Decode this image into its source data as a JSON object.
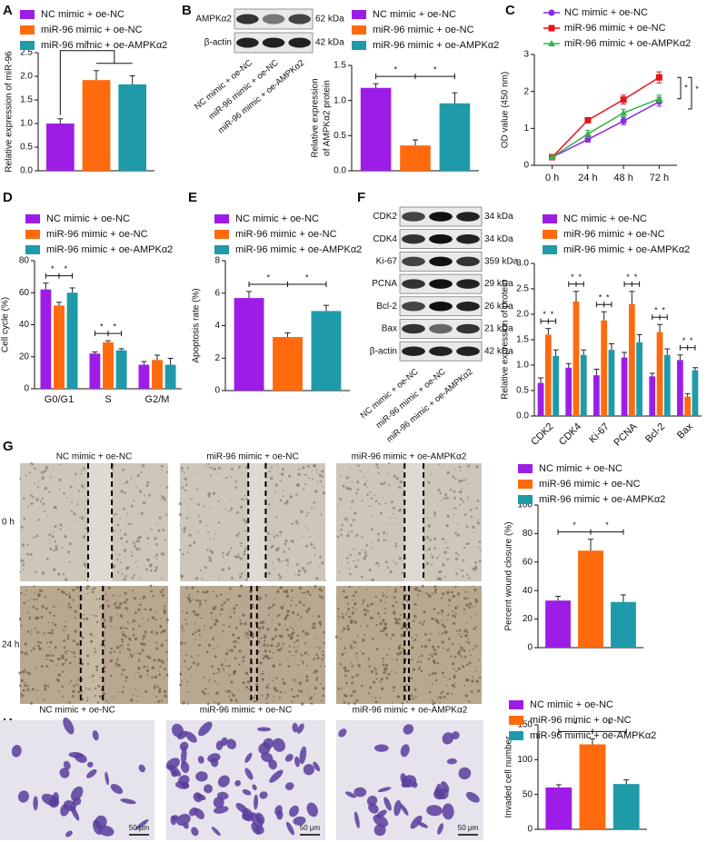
{
  "chart_data": [
    {
      "type": "bar",
      "panel": "A",
      "ylabel": "Relative expression of miR-96",
      "categories": [
        null
      ],
      "series": [
        {
          "name": "NC mimic + oe-NC",
          "color": "#9d1de6",
          "values": [
            1.0
          ],
          "errors": [
            0.1
          ]
        },
        {
          "name": "miR-96 mimic + oe-NC",
          "color": "#ff6a0d",
          "values": [
            1.92
          ],
          "errors": [
            0.2
          ]
        },
        {
          "name": "miR-96 mimic + oe-AMPKα2",
          "color": "#1f9aa9",
          "values": [
            1.83
          ],
          "errors": [
            0.18
          ]
        }
      ],
      "ylim": [
        0,
        2.5
      ],
      "yticks": [
        {
          "value": 0,
          "label": "0.0"
        },
        {
          "value": 0.5,
          "label": "0.5"
        },
        {
          "value": 1,
          "label": "1.0"
        },
        {
          "value": 1.5,
          "label": "1.5"
        },
        {
          "value": 2,
          "label": "2.0"
        },
        {
          "value": 2.5,
          "label": "2.5"
        }
      ],
      "annotations": [
        "*"
      ]
    },
    {
      "type": "bar",
      "panel": "B",
      "ylabel": [
        "Relative expression",
        "of AMPKα2 protein"
      ],
      "categories": [
        null
      ],
      "series": [
        {
          "name": "NC mimic + oe-NC",
          "color": "#9d1de6",
          "values": [
            1.18
          ],
          "errors": [
            0.06
          ]
        },
        {
          "name": "miR-96 mimic + oe-NC",
          "color": "#ff6a0d",
          "values": [
            0.36
          ],
          "errors": [
            0.08
          ]
        },
        {
          "name": "miR-96 mimic + oe-AMPKα2",
          "color": "#1f9aa9",
          "values": [
            0.96
          ],
          "errors": [
            0.15
          ]
        }
      ],
      "ylim": [
        0,
        1.5
      ],
      "yticks": [
        {
          "value": 0,
          "label": "0.0"
        },
        {
          "value": 0.5,
          "label": "0.5"
        },
        {
          "value": 1,
          "label": "1.0"
        },
        {
          "value": 1.5,
          "label": "1.5"
        }
      ],
      "annotations": [
        "*",
        "*"
      ]
    },
    {
      "type": "line",
      "panel": "C",
      "ylabel": "OD value (450 nm)",
      "categories": [
        "0 h",
        "24 h",
        "48 h",
        "72 h"
      ],
      "series": [
        {
          "name": "NC mimic + oe-NC",
          "color": "#8a2be2",
          "marker": "circle",
          "values": [
            0.22,
            0.7,
            1.2,
            1.72
          ],
          "errors": [
            0.03,
            0.07,
            0.1,
            0.12
          ]
        },
        {
          "name": "miR-96 mimic + oe-NC",
          "color": "#e8141b",
          "marker": "square",
          "values": [
            0.22,
            1.22,
            1.78,
            2.38
          ],
          "errors": [
            0.03,
            0.07,
            0.12,
            0.15
          ]
        },
        {
          "name": "miR-96 mimic + oe-AMPKα2",
          "color": "#32b34a",
          "marker": "triangle",
          "values": [
            0.22,
            0.85,
            1.42,
            1.8
          ],
          "errors": [
            0.03,
            0.1,
            0.1,
            0.1
          ]
        }
      ],
      "ylim": [
        0,
        3
      ],
      "yticks": [
        0,
        1,
        2,
        3
      ],
      "annotations": [
        "*",
        "*"
      ]
    },
    {
      "type": "bar",
      "panel": "D",
      "ylabel": "Cell cycle (%)",
      "categories": [
        "G0/G1",
        "S",
        "G2/M"
      ],
      "series": [
        {
          "name": "NC mimic + oe-NC",
          "color": "#9d1de6",
          "values": [
            62,
            22,
            15
          ],
          "errors": [
            4,
            1,
            2
          ]
        },
        {
          "name": "miR-96 mimic + oe-NC",
          "color": "#ff6a0d",
          "values": [
            52,
            29,
            18
          ],
          "errors": [
            2,
            1,
            3
          ]
        },
        {
          "name": "miR-96 mimic + oe-AMPKα2",
          "color": "#1f9aa9",
          "values": [
            60,
            24,
            15
          ],
          "errors": [
            3,
            1,
            4
          ]
        }
      ],
      "ylim": [
        0,
        80
      ],
      "yticks": [
        0,
        20,
        40,
        60,
        80
      ],
      "annotations": [
        "*",
        "*",
        "*",
        "*"
      ]
    },
    {
      "type": "bar",
      "panel": "E",
      "ylabel": "Apoptosis rate (%)",
      "categories": [
        null
      ],
      "series": [
        {
          "name": "NC mimic + oe-NC",
          "color": "#9d1de6",
          "values": [
            5.7
          ],
          "errors": [
            0.4
          ]
        },
        {
          "name": "miR-96 mimic + oe-NC",
          "color": "#ff6a0d",
          "values": [
            3.3
          ],
          "errors": [
            0.25
          ]
        },
        {
          "name": "miR-96 mimic + oe-AMPKα2",
          "color": "#1f9aa9",
          "values": [
            4.9
          ],
          "errors": [
            0.35
          ]
        }
      ],
      "ylim": [
        0,
        8
      ],
      "yticks": [
        0,
        2,
        4,
        6,
        8
      ],
      "annotations": [
        "*",
        "*"
      ]
    },
    {
      "type": "bar",
      "panel": "F",
      "ylabel": "Relative expression of protein",
      "categories": [
        "CDK2",
        "CDK4",
        "Ki-67",
        "PCNA",
        "Bcl-2",
        "Bax"
      ],
      "series": [
        {
          "name": "NC mimic + oe-NC",
          "color": "#9d1de6",
          "values": [
            0.65,
            0.95,
            0.8,
            1.15,
            0.78,
            1.1
          ],
          "errors": [
            0.1,
            0.08,
            0.12,
            0.1,
            0.06,
            0.1
          ]
        },
        {
          "name": "miR-96 mimic + oe-NC",
          "color": "#ff6a0d",
          "values": [
            1.6,
            2.25,
            1.88,
            2.2,
            1.65,
            0.38
          ],
          "errors": [
            0.12,
            0.2,
            0.17,
            0.25,
            0.15,
            0.06
          ]
        },
        {
          "name": "miR-96 mimic + oe-AMPKα2",
          "color": "#1f9aa9",
          "values": [
            1.18,
            1.2,
            1.3,
            1.45,
            1.2,
            0.9
          ],
          "errors": [
            0.12,
            0.1,
            0.12,
            0.15,
            0.12,
            0.05
          ]
        }
      ],
      "ylim": [
        0,
        3
      ],
      "yticks": [
        {
          "value": 0,
          "label": "0.0"
        },
        {
          "value": 0.5,
          "label": "0.5"
        },
        {
          "value": 1,
          "label": "1.0"
        },
        {
          "value": 1.5,
          "label": "1.5"
        },
        {
          "value": 2,
          "label": "2.0"
        },
        {
          "value": 2.5,
          "label": "2.5"
        },
        {
          "value": 3,
          "label": "3.0"
        }
      ],
      "annotations": [
        "*",
        "*",
        "*",
        "*",
        "*",
        "*",
        "*",
        "*",
        "*",
        "*",
        "*",
        "*"
      ]
    },
    {
      "type": "bar",
      "panel": "G",
      "ylabel": "Percent wound closure (%)",
      "categories": [
        null
      ],
      "series": [
        {
          "name": "NC mimic + oe-NC",
          "color": "#9d1de6",
          "values": [
            33
          ],
          "errors": [
            3
          ]
        },
        {
          "name": "miR-96 mimic + oe-NC",
          "color": "#ff6a0d",
          "values": [
            68
          ],
          "errors": [
            8
          ]
        },
        {
          "name": "miR-96 mimic + oe-AMPKα2",
          "color": "#1f9aa9",
          "values": [
            32
          ],
          "errors": [
            5
          ]
        }
      ],
      "ylim": [
        0,
        100
      ],
      "yticks": [
        0,
        20,
        40,
        60,
        80,
        100
      ],
      "annotations": [
        "*",
        "*"
      ]
    },
    {
      "type": "bar",
      "panel": "H",
      "ylabel": "Invaded cell number",
      "categories": [
        null
      ],
      "series": [
        {
          "name": "NC mimic + oe-NC",
          "color": "#9d1de6",
          "values": [
            60
          ],
          "errors": [
            4
          ]
        },
        {
          "name": "miR-96 mimic + oe-NC",
          "color": "#ff6a0d",
          "values": [
            122
          ],
          "errors": [
            8
          ]
        },
        {
          "name": "miR-96 mimic + oe-AMPKα2",
          "color": "#1f9aa9",
          "values": [
            65
          ],
          "errors": [
            6
          ]
        }
      ],
      "ylim": [
        0,
        150
      ],
      "yticks": [
        0,
        50,
        100,
        150
      ],
      "annotations": [
        "*",
        "*"
      ]
    }
  ],
  "blot_B": {
    "rows": [
      {
        "label": "AMPKα2",
        "size": "62 kDa"
      },
      {
        "label": "β-actin",
        "size": "42 kDa"
      }
    ],
    "lanes": [
      "NC mimic + oe-NC",
      "miR-96 mimic + oe-NC",
      "miR-96 mimic + oe-AMPKα2"
    ]
  },
  "blot_F": {
    "rows": [
      {
        "label": "CDK2",
        "size": "34 kDa"
      },
      {
        "label": "CDK4",
        "size": "34 kDa"
      },
      {
        "label": "Ki-67",
        "size": "359 kDa"
      },
      {
        "label": "PCNA",
        "size": "29 kDa"
      },
      {
        "label": "Bcl-2",
        "size": "26 kDa"
      },
      {
        "label": "Bax",
        "size": "21 kDa"
      },
      {
        "label": "β-actin",
        "size": "42 kDa"
      }
    ],
    "lanes": [
      "NC mimic + oe-NC",
      "miR-96 mimic + oe-NC",
      "miR-96 mimic + oe-AMPKα2"
    ]
  },
  "wound": {
    "columns": [
      "NC mimic + oe-NC",
      "miR-96 mimic + oe-NC",
      "miR-96 mimic + oe-AMPKα2"
    ],
    "rows": [
      "0 h",
      "24 h"
    ]
  },
  "invasion": {
    "columns": [
      "NC mimic + oe-NC",
      "miR-96 mimic + oe-NC",
      "miR-96 mimic + oe-AMPKα2"
    ],
    "scale_bar": "50 μm"
  }
}
